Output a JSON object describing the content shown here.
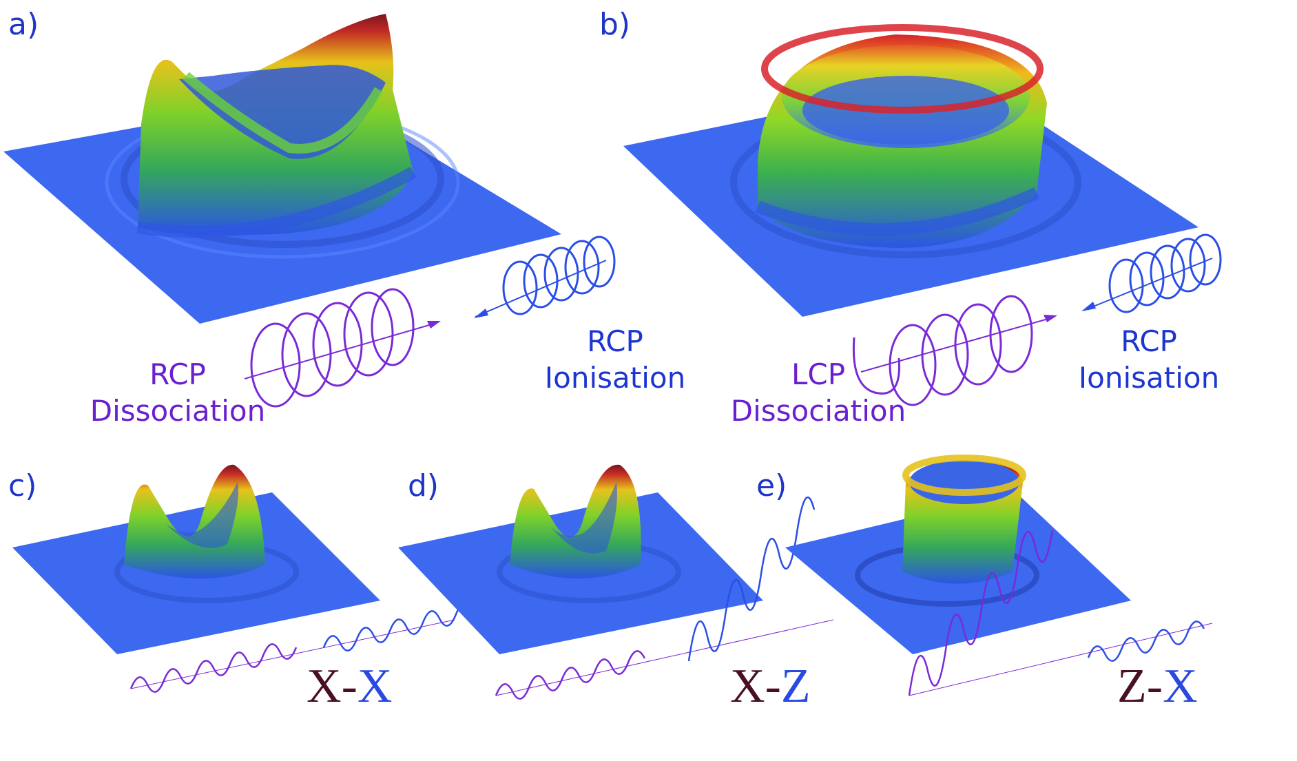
{
  "panels": {
    "a": {
      "label": "a)",
      "dissociation": {
        "pol": "RCP",
        "word": "Dissociation"
      },
      "ionisation": {
        "pol": "RCP",
        "word": "Ionisation"
      }
    },
    "b": {
      "label": "b)",
      "dissociation": {
        "pol": "LCP",
        "word": "Dissociation"
      },
      "ionisation": {
        "pol": "RCP",
        "word": "Ionisation"
      }
    },
    "c": {
      "label": "c)",
      "first": "X",
      "sep": "-",
      "second": "X"
    },
    "d": {
      "label": "d)",
      "first": "X",
      "sep": "-",
      "second": "Z"
    },
    "e": {
      "label": "e)",
      "first": "Z",
      "sep": "-",
      "second": "X"
    }
  },
  "colors": {
    "plane": "#3d68f0",
    "surface_low": "#2a4ce0",
    "surface_mid": "#6fd12c",
    "surface_high": "#f0c21a",
    "surface_peak": "#d8232a",
    "ionisation_wave": "#2b4ee6",
    "dissociation_wave": "#7a2ad6",
    "label_blue": "#1f35c8",
    "label_dark": "#4a0f24"
  }
}
